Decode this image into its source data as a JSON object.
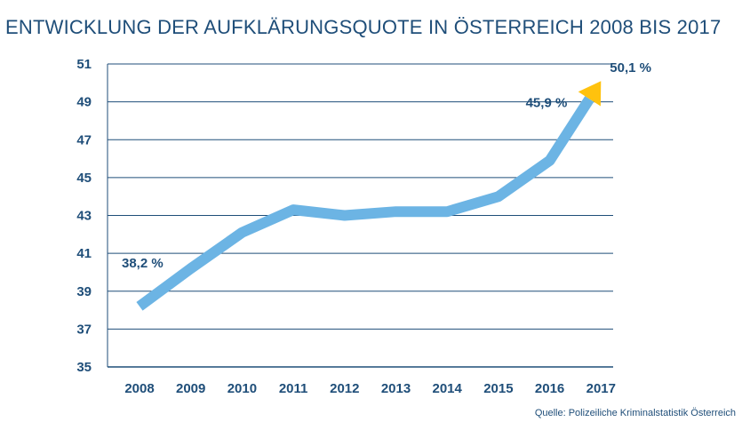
{
  "chart_data": {
    "type": "line",
    "title": "ENTWICKLUNG DER AUFKLÄRUNGSQUOTE IN ÖSTERREICH 2008 BIS 2017",
    "xlabel": "",
    "ylabel": "",
    "categories": [
      "2008",
      "2009",
      "2010",
      "2011",
      "2012",
      "2013",
      "2014",
      "2015",
      "2016",
      "2017"
    ],
    "series": [
      {
        "name": "Aufklärungsquote",
        "values": [
          38.2,
          40.2,
          42.1,
          43.3,
          43.0,
          43.2,
          43.2,
          44.0,
          45.9,
          50.1
        ]
      }
    ],
    "ylim": [
      35,
      51
    ],
    "yticks": [
      "35",
      "37",
      "39",
      "41",
      "43",
      "45",
      "47",
      "49",
      "51"
    ],
    "grid": true,
    "annotations": [
      {
        "label": "38,2 %",
        "category_index": 0
      },
      {
        "label": "45,9 %",
        "category_index": 8
      },
      {
        "label": "50,1 %",
        "category_index": 9
      }
    ],
    "colors": {
      "line": "#6cb4e4",
      "arrow_head": "#ffc20e",
      "text": "#1f4e79",
      "grid": "#1f4e79"
    }
  },
  "source": "Quelle: Polizeiliche Kriminalstatistik Österreich"
}
